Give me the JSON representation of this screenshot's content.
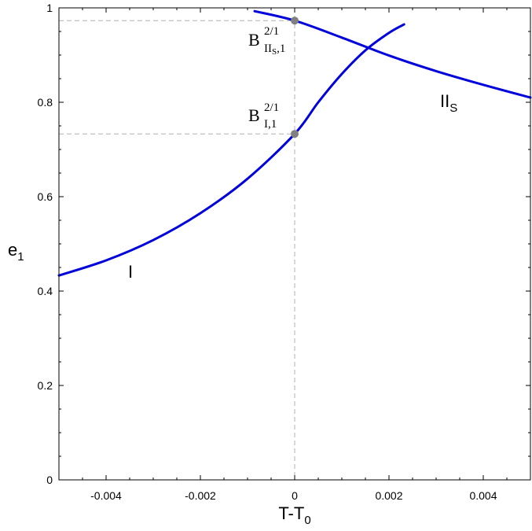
{
  "chart_data": {
    "type": "line",
    "title": "",
    "xlabel": {
      "main": "T-T",
      "sub": "0"
    },
    "ylabel": {
      "main": "e",
      "sub": "1"
    },
    "xlim": [
      -0.005,
      0.005
    ],
    "ylim": [
      0,
      1
    ],
    "xticks": [
      "-0.004",
      "-0.002",
      "0",
      "0.002",
      "0.004"
    ],
    "yticks": [
      "0",
      "0.2",
      "0.4",
      "0.6",
      "0.8",
      "1"
    ],
    "grid": false,
    "colors": {
      "curve": "#0000dd",
      "marker": "#808080",
      "guide": "#b0b0b0"
    },
    "series": [
      {
        "name": "I",
        "x": [
          -0.005,
          -0.004,
          -0.003,
          -0.002,
          -0.001,
          0.0,
          0.0005,
          0.001,
          0.0015,
          0.002,
          0.00232
        ],
        "y": [
          0.433,
          0.465,
          0.508,
          0.565,
          0.638,
          0.733,
          0.8,
          0.86,
          0.91,
          0.947,
          0.965
        ]
      },
      {
        "name": "II",
        "name_sub": "S",
        "x": [
          -0.00085,
          0.0,
          0.001,
          0.002,
          0.003,
          0.004,
          0.005
        ],
        "y": [
          0.993,
          0.973,
          0.937,
          0.899,
          0.866,
          0.837,
          0.81
        ]
      }
    ],
    "points": [
      {
        "x": 0.0,
        "y": 0.973,
        "label": {
          "main": "B",
          "sup": "2/1",
          "sub": "II",
          "subsub": "S",
          "subtail": ",1"
        }
      },
      {
        "x": 0.0,
        "y": 0.733,
        "label": {
          "main": "B",
          "sup": "2/1",
          "sub": "I,1"
        }
      }
    ]
  }
}
